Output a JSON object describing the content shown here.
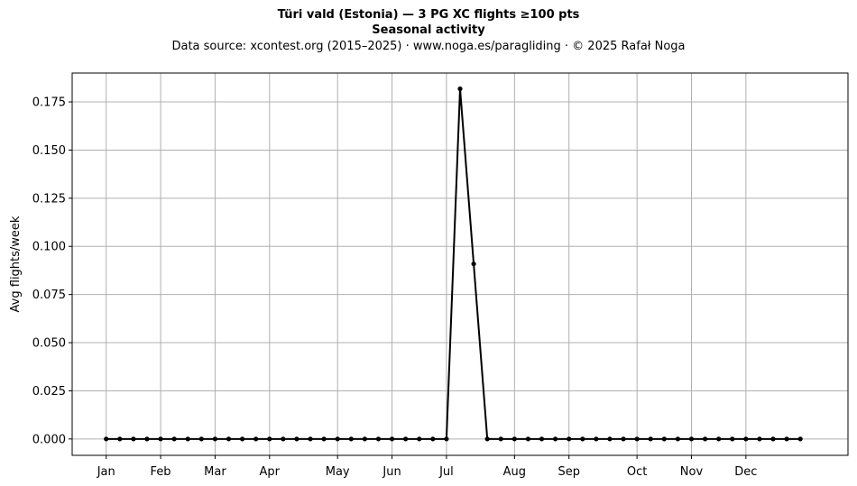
{
  "chart_data": {
    "type": "line",
    "title": "Türi vald (Estonia)  —  3 PG XC flights ≥100 pts",
    "subtitle": "Seasonal activity",
    "source_note": "Data source: xcontest.org (2015–2025)  ·  www.noga.es/paragliding  ·  © 2025 Rafał Noga",
    "xlabel": "",
    "ylabel": "Avg flights/week",
    "ylim": [
      -0.0085,
      0.19
    ],
    "yticks": [
      0.0,
      0.025,
      0.05,
      0.075,
      0.1,
      0.125,
      0.15,
      0.175
    ],
    "ytick_labels": [
      "0.000",
      "0.025",
      "0.050",
      "0.075",
      "0.100",
      "0.125",
      "0.150",
      "0.175"
    ],
    "xlim": [
      -2.5,
      54.5
    ],
    "month_ticks": [
      {
        "label": "Jan",
        "x": 0
      },
      {
        "label": "Feb",
        "x": 4
      },
      {
        "label": "Mar",
        "x": 8
      },
      {
        "label": "Apr",
        "x": 12
      },
      {
        "label": "May",
        "x": 17
      },
      {
        "label": "Jun",
        "x": 21
      },
      {
        "label": "Jul",
        "x": 25
      },
      {
        "label": "Aug",
        "x": 30
      },
      {
        "label": "Sep",
        "x": 34
      },
      {
        "label": "Oct",
        "x": 39
      },
      {
        "label": "Nov",
        "x": 43
      },
      {
        "label": "Dec",
        "x": 47
      }
    ],
    "grid": true,
    "series": [
      {
        "color": "#000000",
        "x": [
          0,
          1,
          2,
          3,
          4,
          5,
          6,
          7,
          8,
          9,
          10,
          11,
          12,
          13,
          14,
          15,
          16,
          17,
          18,
          19,
          20,
          21,
          22,
          23,
          24,
          25,
          26,
          27,
          28,
          29,
          30,
          31,
          32,
          33,
          34,
          35,
          36,
          37,
          38,
          39,
          40,
          41,
          42,
          43,
          44,
          45,
          46,
          47,
          48,
          49,
          50,
          51
        ],
        "values": [
          0,
          0,
          0,
          0,
          0,
          0,
          0,
          0,
          0,
          0,
          0,
          0,
          0,
          0,
          0,
          0,
          0,
          0,
          0,
          0,
          0,
          0,
          0,
          0,
          0,
          0,
          0.1818,
          0.0909,
          0,
          0,
          0,
          0,
          0,
          0,
          0,
          0,
          0,
          0,
          0,
          0,
          0,
          0,
          0,
          0,
          0,
          0,
          0,
          0,
          0,
          0,
          0,
          0
        ]
      }
    ]
  }
}
